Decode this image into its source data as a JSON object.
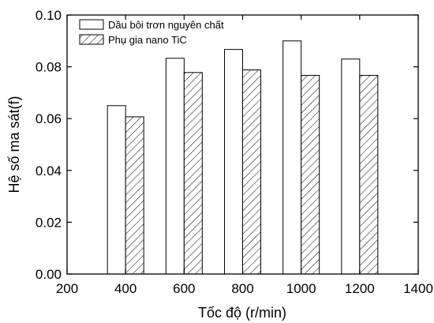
{
  "chart_data": {
    "type": "bar",
    "xlabel": "Tốc độ (r/min)",
    "ylabel": "Hệ số ma sát(f)",
    "xlim": [
      200,
      1400
    ],
    "ylim": [
      0,
      0.1
    ],
    "xticks": [
      "200",
      "400",
      "600",
      "800",
      "1000",
      "1200",
      "1400"
    ],
    "yticks": [
      "0.00",
      "0.02",
      "0.04",
      "0.06",
      "0.08",
      "0.10"
    ],
    "categories": [
      400,
      600,
      800,
      1000,
      1200
    ],
    "series": [
      {
        "name": "Dầu bôi trơn nguyên chất",
        "values": [
          0.065,
          0.0833,
          0.0867,
          0.09,
          0.083
        ],
        "fill": "plain"
      },
      {
        "name": "Phụ gia nano TiC",
        "values": [
          0.0607,
          0.0778,
          0.0788,
          0.0767,
          0.0767
        ],
        "fill": "hatched"
      }
    ],
    "legend_position": "top-left",
    "grid": false
  }
}
